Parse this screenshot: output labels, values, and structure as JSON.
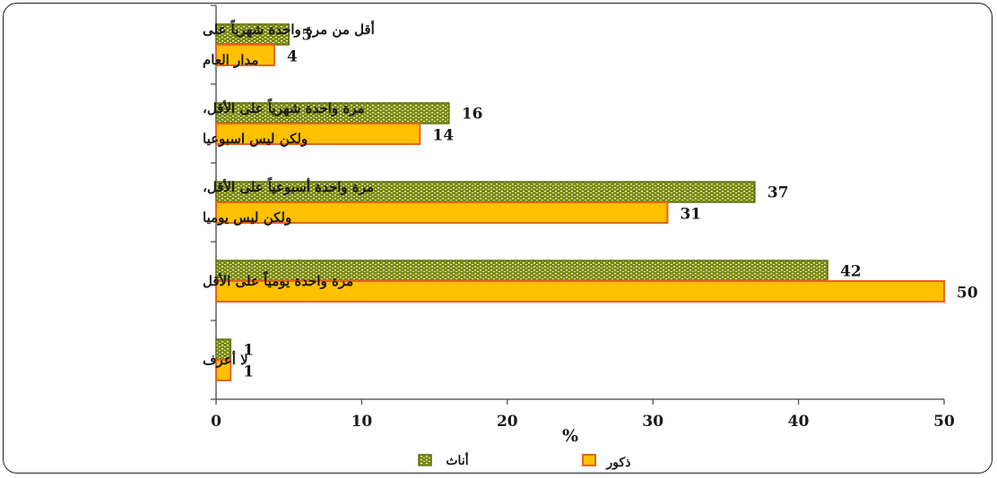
{
  "chart_data": {
    "type": "bar",
    "orientation": "horizontal",
    "unit_label": "%",
    "xlim": [
      0,
      50
    ],
    "xticks": [
      "0",
      "10",
      "20",
      "30",
      "40",
      "50"
    ],
    "categories": [
      [
        "أقل من مرة واحدة شهرياً على",
        "مدار العام"
      ],
      [
        "مرة واحدة شهرياً على الأقل،",
        "ولكن ليس اسبوعيا"
      ],
      [
        "مرة واحدة أسبوعياً على الأقل،",
        "ولكن ليس يوميا"
      ],
      [
        "مرة واحدة يومياً على الأقل"
      ],
      [
        "لا أعرف"
      ]
    ],
    "series": [
      {
        "name": "أناث",
        "values": [
          5,
          16,
          37,
          42,
          1
        ],
        "color": "#7a8a12",
        "pattern": "dotted"
      },
      {
        "name": "ذكور",
        "values": [
          4,
          14,
          31,
          50,
          1
        ],
        "color": "#ffc000",
        "border": "#e8641e"
      }
    ],
    "legend": {
      "placement": "bottom"
    },
    "grid": false
  }
}
